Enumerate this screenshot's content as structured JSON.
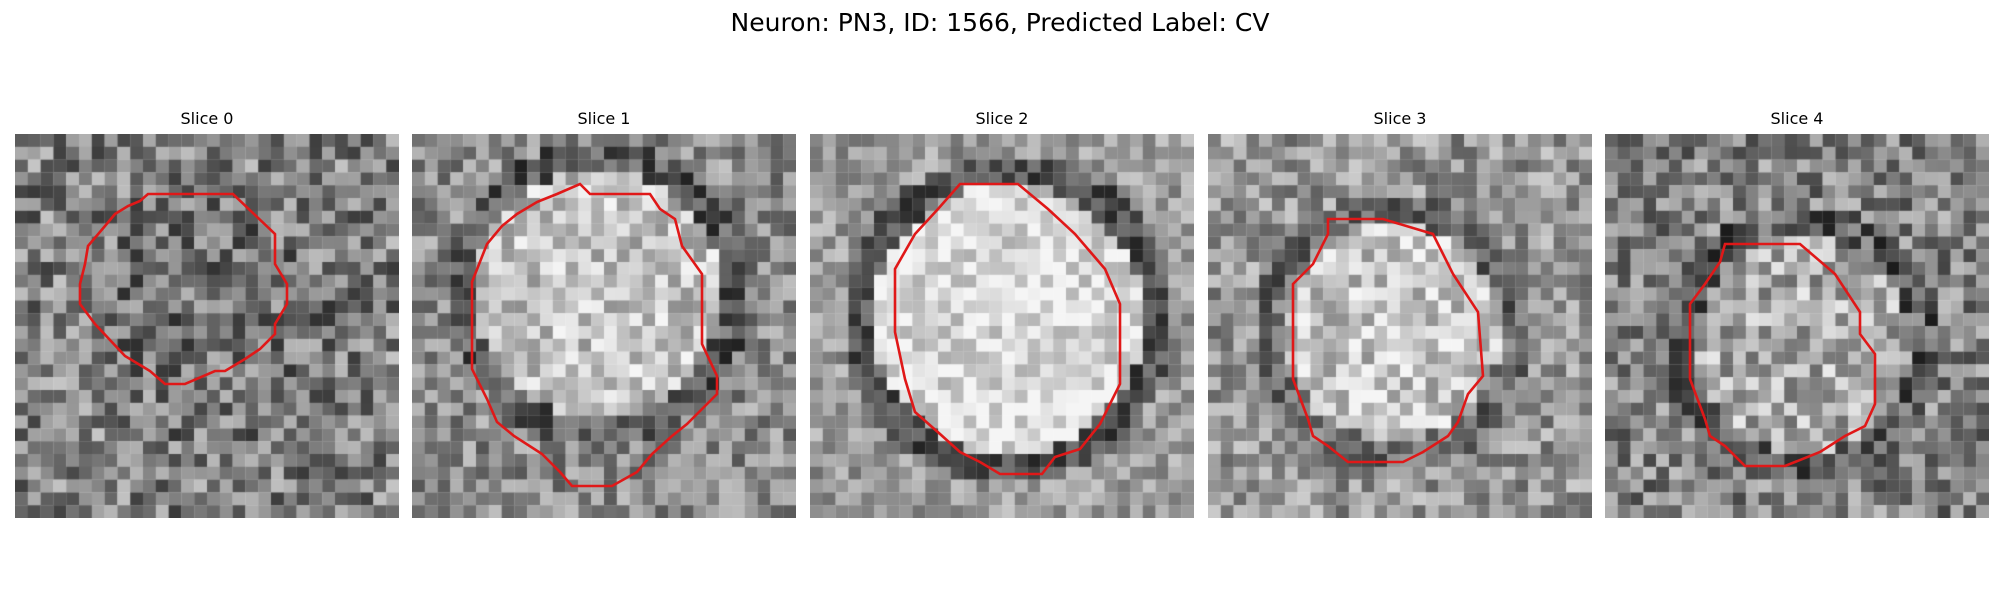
{
  "figure": {
    "title": "Neuron: PN3, ID: 1566, Predicted Label: CV"
  },
  "style": {
    "contour_color": "#e01818"
  },
  "panels": [
    {
      "title": "Slice 0",
      "brightness": "medium-dark",
      "contrast": "low"
    },
    {
      "title": "Slice 1",
      "brightness": "bright",
      "contrast": "high"
    },
    {
      "title": "Slice 2",
      "brightness": "bright",
      "contrast": "high"
    },
    {
      "title": "Slice 3",
      "brightness": "bright",
      "contrast": "medium"
    },
    {
      "title": "Slice 4",
      "brightness": "medium",
      "contrast": "medium"
    }
  ]
}
